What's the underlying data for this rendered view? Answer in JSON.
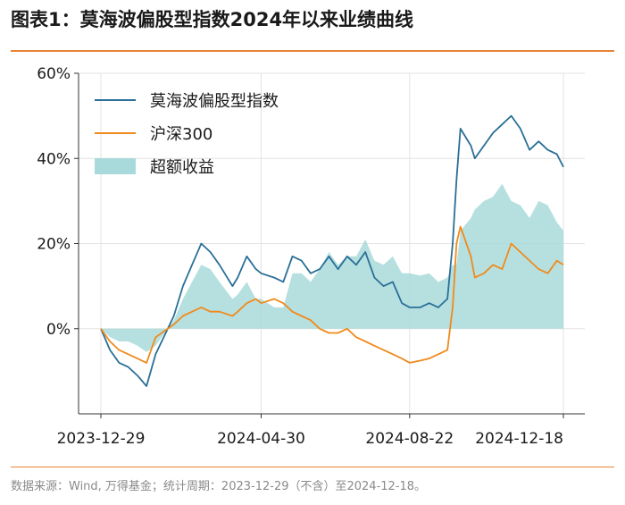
{
  "header": {
    "title": "图表1：莫海波偏股型指数2024年以来业绩曲线"
  },
  "footer": {
    "source": "数据来源：Wind, 万得基金；统计周期：2023-12-29（不含）至2024-12-18。"
  },
  "colors": {
    "index_line": "#2a6f97",
    "hs300_line": "#f08a1c",
    "excess_fill": "#a9dadb",
    "accent_rule": "#e8833a"
  },
  "chart_data": {
    "type": "line",
    "title": "",
    "xlabel": "",
    "ylabel": "",
    "ylim": [
      -0.2,
      0.6
    ],
    "yticks": [
      "0%",
      "20%",
      "40%",
      "60%"
    ],
    "yticks_values": [
      0,
      0.2,
      0.4,
      0.6
    ],
    "xticks": [
      "2023-12-29",
      "2024-04-30",
      "2024-08-22",
      "2024-12-18"
    ],
    "grid": true,
    "legend_position": "top-left",
    "x": [
      "2023-12-29",
      "2024-01-05",
      "2024-01-12",
      "2024-01-19",
      "2024-01-26",
      "2024-02-02",
      "2024-02-09",
      "2024-02-23",
      "2024-03-01",
      "2024-03-08",
      "2024-03-15",
      "2024-03-22",
      "2024-03-29",
      "2024-04-08",
      "2024-04-12",
      "2024-04-19",
      "2024-04-26",
      "2024-04-30",
      "2024-05-10",
      "2024-05-17",
      "2024-05-24",
      "2024-05-31",
      "2024-06-07",
      "2024-06-14",
      "2024-06-21",
      "2024-06-28",
      "2024-07-05",
      "2024-07-12",
      "2024-07-19",
      "2024-07-26",
      "2024-08-02",
      "2024-08-09",
      "2024-08-16",
      "2024-08-22",
      "2024-08-30",
      "2024-09-06",
      "2024-09-13",
      "2024-09-20",
      "2024-09-24",
      "2024-09-27",
      "2024-09-30",
      "2024-10-08",
      "2024-10-11",
      "2024-10-18",
      "2024-10-25",
      "2024-11-01",
      "2024-11-08",
      "2024-11-15",
      "2024-11-22",
      "2024-11-29",
      "2024-12-06",
      "2024-12-13",
      "2024-12-18"
    ],
    "series": [
      {
        "name": "莫海波偏股型指数",
        "kind": "line",
        "values": [
          0.0,
          -0.05,
          -0.08,
          -0.09,
          -0.11,
          -0.135,
          -0.06,
          0.03,
          0.1,
          0.15,
          0.2,
          0.18,
          0.15,
          0.1,
          0.12,
          0.17,
          0.14,
          0.13,
          0.12,
          0.11,
          0.17,
          0.16,
          0.13,
          0.14,
          0.17,
          0.14,
          0.17,
          0.15,
          0.18,
          0.12,
          0.1,
          0.11,
          0.06,
          0.05,
          0.05,
          0.06,
          0.05,
          0.07,
          0.2,
          0.35,
          0.47,
          0.43,
          0.4,
          0.43,
          0.46,
          0.48,
          0.5,
          0.47,
          0.42,
          0.44,
          0.42,
          0.41,
          0.38
        ]
      },
      {
        "name": "沪深300",
        "kind": "line",
        "values": [
          0.0,
          -0.03,
          -0.05,
          -0.06,
          -0.07,
          -0.08,
          -0.02,
          0.01,
          0.03,
          0.04,
          0.05,
          0.04,
          0.04,
          0.03,
          0.04,
          0.06,
          0.07,
          0.06,
          0.07,
          0.06,
          0.04,
          0.03,
          0.02,
          0.0,
          -0.01,
          -0.01,
          0.0,
          -0.02,
          -0.03,
          -0.04,
          -0.05,
          -0.06,
          -0.07,
          -0.08,
          -0.075,
          -0.07,
          -0.06,
          -0.05,
          0.05,
          0.2,
          0.24,
          0.17,
          0.12,
          0.13,
          0.15,
          0.14,
          0.2,
          0.18,
          0.16,
          0.14,
          0.13,
          0.16,
          0.15
        ]
      },
      {
        "name": "超额收益",
        "kind": "area",
        "values": [
          0.0,
          -0.02,
          -0.03,
          -0.03,
          -0.04,
          -0.055,
          -0.04,
          0.02,
          0.07,
          0.11,
          0.15,
          0.14,
          0.11,
          0.07,
          0.08,
          0.11,
          0.07,
          0.07,
          0.05,
          0.05,
          0.13,
          0.13,
          0.11,
          0.14,
          0.18,
          0.15,
          0.17,
          0.17,
          0.21,
          0.16,
          0.15,
          0.17,
          0.13,
          0.13,
          0.125,
          0.13,
          0.11,
          0.12,
          0.15,
          0.15,
          0.23,
          0.26,
          0.28,
          0.3,
          0.31,
          0.34,
          0.3,
          0.29,
          0.26,
          0.3,
          0.29,
          0.25,
          0.23
        ]
      }
    ]
  }
}
